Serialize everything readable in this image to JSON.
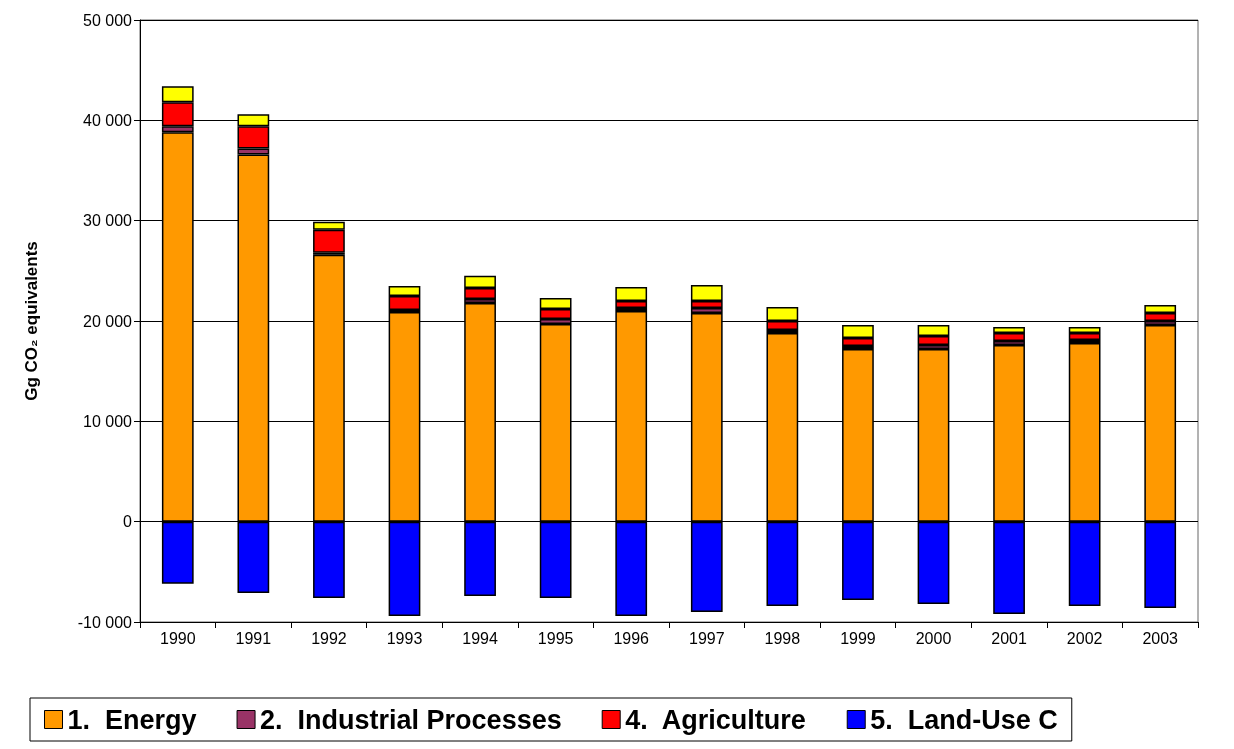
{
  "chart_data": {
    "type": "bar",
    "stacked": true,
    "ylabel": "Gg CO₂ equivalents",
    "categories": [
      "1990",
      "1991",
      "1992",
      "1993",
      "1994",
      "1995",
      "1996",
      "1997",
      "1998",
      "1999",
      "2000",
      "2001",
      "2002",
      "2003"
    ],
    "series": [
      {
        "name": "1.  Energy",
        "color": "#ff9900",
        "values": [
          38800,
          36600,
          26600,
          20900,
          21800,
          19700,
          21000,
          20800,
          18800,
          17200,
          17200,
          17600,
          17800,
          19600
        ]
      },
      {
        "name": "2.  Industrial Processes",
        "color": "#993366",
        "values": [
          600,
          600,
          200,
          200,
          400,
          500,
          300,
          500,
          300,
          300,
          400,
          400,
          300,
          400
        ]
      },
      {
        "name": "4.  Agriculture",
        "color": "#ff0000",
        "values": [
          2400,
          2200,
          2300,
          1400,
          1100,
          1000,
          700,
          700,
          900,
          800,
          900,
          800,
          700,
          800
        ]
      },
      {
        "name": "5.  Land-Use C",
        "color": "#0000ff",
        "values": [
          -6200,
          -7100,
          -7600,
          -9400,
          -7400,
          -7600,
          -9400,
          -9000,
          -8400,
          -7800,
          -8200,
          -9200,
          -8400,
          -8600
        ]
      },
      {
        "color": "#ffff00",
        "values": [
          1600,
          1200,
          800,
          1000,
          1200,
          1100,
          1400,
          1600,
          1400,
          1300,
          1100,
          600,
          600,
          800
        ]
      }
    ],
    "ylim": [
      -10000,
      50000
    ],
    "yticks": [
      {
        "value": -10000,
        "label": "-10 000"
      },
      0,
      {
        "value": 10000,
        "label": "10 000"
      },
      {
        "value": 20000,
        "label": "20 000"
      },
      {
        "value": 30000,
        "label": "30 000"
      },
      {
        "value": 40000,
        "label": "40 000"
      },
      {
        "value": 50000,
        "label": "50 000"
      }
    ],
    "grid": "y",
    "legend": "bottom"
  }
}
